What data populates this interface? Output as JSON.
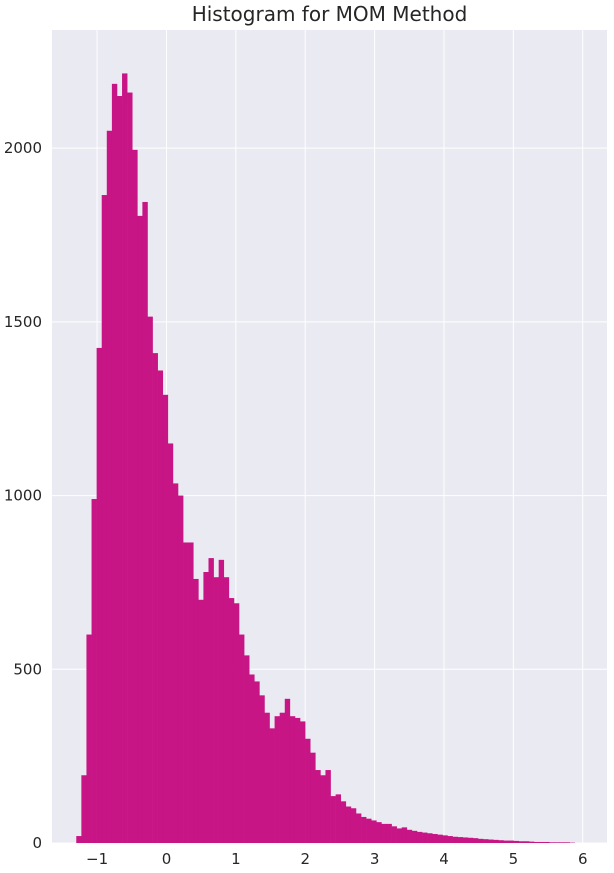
{
  "chart_data": {
    "type": "bar",
    "title": "Histogram for MOM Method",
    "xlabel": "",
    "ylabel": "",
    "bar_color": "#c71585",
    "background_color": "#eaeaf2",
    "grid_color": "#ffffff",
    "grid": true,
    "legend": "none",
    "xlim": [
      -1.65,
      6.35
    ],
    "ylim": [
      0,
      2340
    ],
    "xticks": [
      -1,
      0,
      1,
      2,
      3,
      4,
      5,
      6
    ],
    "xtick_labels": [
      "−1",
      "0",
      "1",
      "2",
      "3",
      "4",
      "5",
      "6"
    ],
    "yticks": [
      0,
      500,
      1000,
      1500,
      2000
    ],
    "ytick_labels": [
      "0",
      "500",
      "1000",
      "1500",
      "2000"
    ],
    "bin_start": -1.3,
    "bin_width": 0.0733,
    "values": [
      20,
      195,
      600,
      990,
      1425,
      1865,
      2050,
      2185,
      2150,
      2215,
      2160,
      1995,
      1805,
      1845,
      1515,
      1410,
      1360,
      1290,
      1150,
      1035,
      1000,
      865,
      865,
      760,
      700,
      780,
      820,
      765,
      815,
      765,
      705,
      690,
      600,
      540,
      485,
      465,
      425,
      375,
      330,
      365,
      375,
      415,
      365,
      360,
      350,
      300,
      260,
      210,
      195,
      210,
      135,
      140,
      120,
      105,
      100,
      85,
      75,
      70,
      65,
      60,
      55,
      55,
      48,
      42,
      45,
      38,
      35,
      32,
      30,
      28,
      26,
      24,
      22,
      20,
      18,
      17,
      16,
      15,
      14,
      12,
      11,
      10,
      9,
      8,
      7,
      7,
      6,
      5,
      5,
      4,
      3,
      3,
      3,
      2,
      2,
      2,
      2,
      1
    ]
  }
}
